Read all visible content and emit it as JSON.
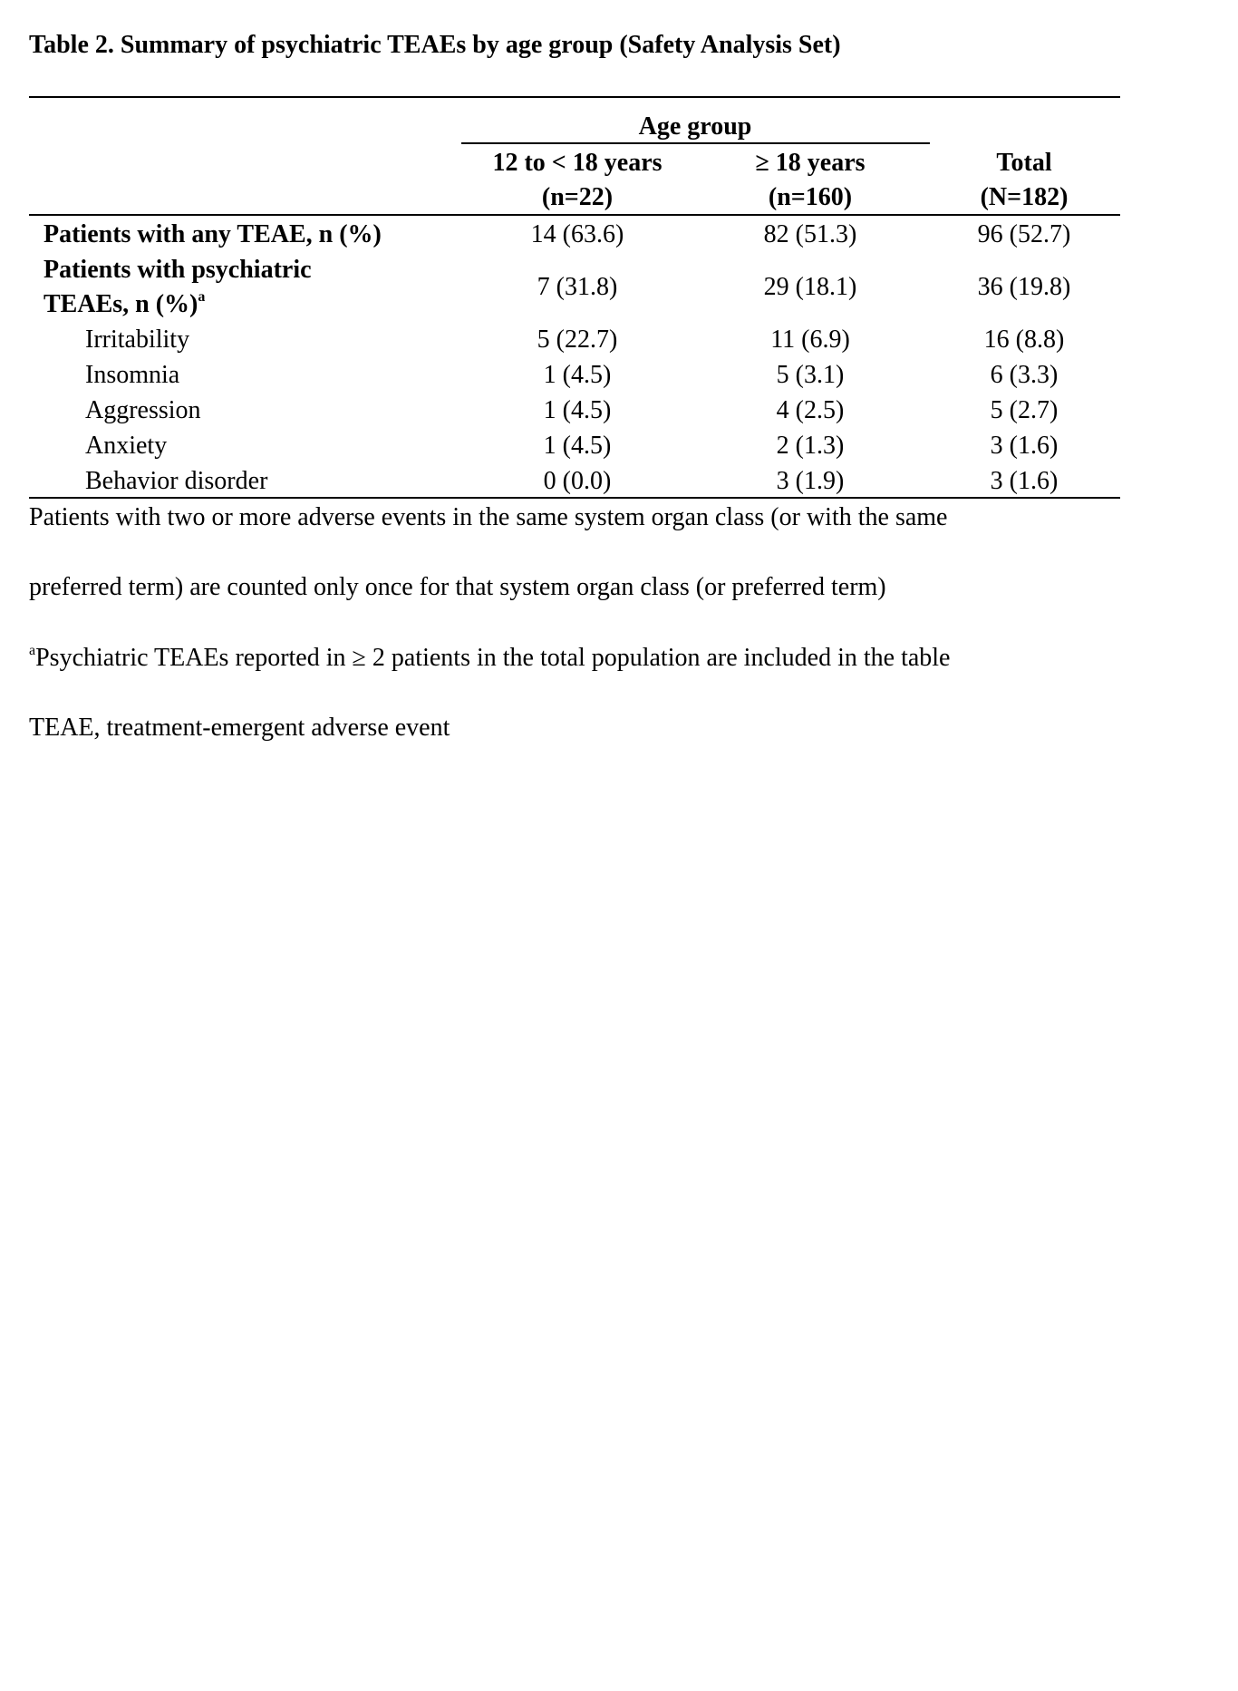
{
  "title": "Table 2. Summary of psychiatric TEAEs by age group (Safety Analysis Set)",
  "spanner": "Age group",
  "columns": [
    {
      "label": "12 to < 18 years",
      "n": "(n=22)"
    },
    {
      "label": "≥ 18 years",
      "n": "(n=160)"
    },
    {
      "label": "Total",
      "n": "(N=182)"
    }
  ],
  "rows": [
    {
      "label": "Patients with any TEAE, n (%)",
      "values": [
        "14 (63.6)",
        "82 (51.3)",
        "96 (52.7)"
      ]
    },
    {
      "label_line1": "Patients with psychiatric",
      "label_line2": "TEAEs, n (%)",
      "sup": "a",
      "values": [
        "7 (31.8)",
        "29 (18.1)",
        "36 (19.8)"
      ]
    },
    {
      "label": "Irritability",
      "values": [
        "5 (22.7)",
        "11 (6.9)",
        "16 (8.8)"
      ]
    },
    {
      "label": "Insomnia",
      "values": [
        "1 (4.5)",
        "5 (3.1)",
        "6 (3.3)"
      ]
    },
    {
      "label": "Aggression",
      "values": [
        "1 (4.5)",
        "4 (2.5)",
        "5 (2.7)"
      ]
    },
    {
      "label": "Anxiety",
      "values": [
        "1 (4.5)",
        "2 (1.3)",
        "3 (1.6)"
      ]
    },
    {
      "label": "Behavior disorder",
      "values": [
        "0 (0.0)",
        "3 (1.9)",
        "3 (1.6)"
      ]
    }
  ],
  "footnotes": {
    "line1": "Patients with two or more adverse events in the same system organ class (or with the same",
    "line2": "preferred term) are counted only once for that system organ class (or preferred term)",
    "line3_sup": "a",
    "line3": "Psychiatric TEAEs reported in ≥ 2 patients in the total population are included in the table",
    "line4": "TEAE, treatment-emergent adverse event"
  }
}
